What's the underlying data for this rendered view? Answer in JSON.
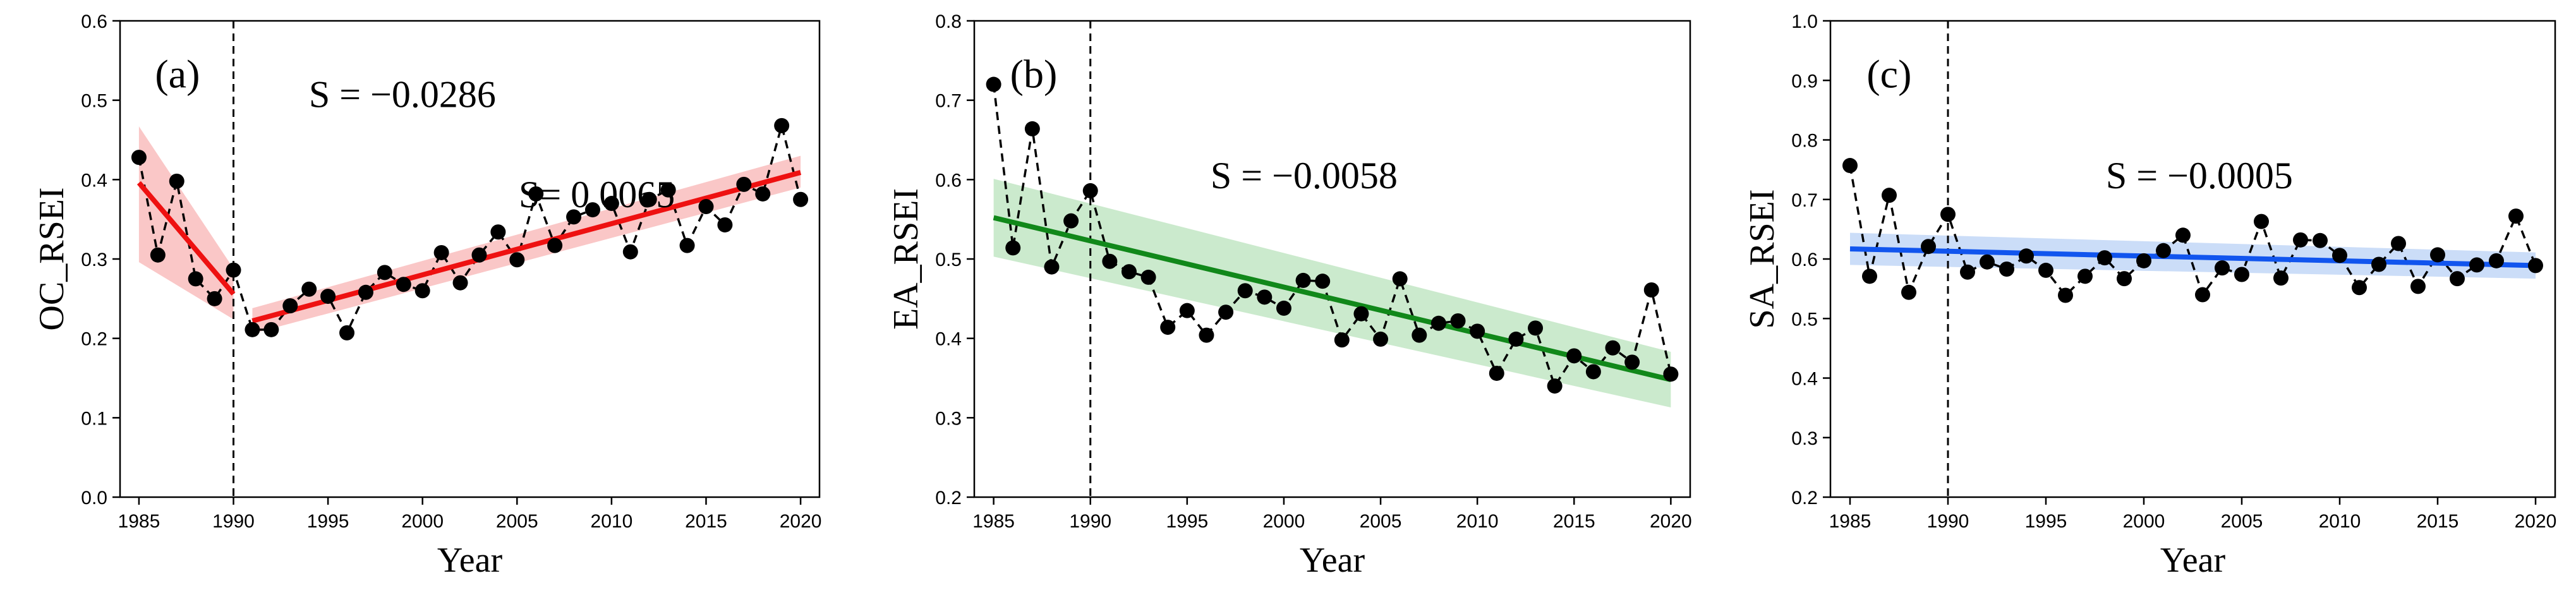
{
  "chart_data": [
    {
      "type": "line",
      "panel_label": "(a)",
      "xlabel": "Year",
      "ylabel": "OC_RSEI",
      "xlim": [
        1984,
        2021
      ],
      "ylim": [
        0.0,
        0.6
      ],
      "xticks": [
        1985,
        1990,
        1995,
        2000,
        2005,
        2010,
        2015,
        2020
      ],
      "yticks": [
        0.0,
        0.1,
        0.2,
        0.3,
        0.4,
        0.5,
        0.6
      ],
      "ytick_labels": [
        "0.0",
        "0.1",
        "0.2",
        "0.3",
        "0.4",
        "0.5",
        "0.6"
      ],
      "breakpoint_year": 1990,
      "series": [
        {
          "name": "RSEI",
          "x": [
            1985,
            1986,
            1987,
            1988,
            1989,
            1990,
            1991,
            1992,
            1993,
            1994,
            1995,
            1996,
            1997,
            1998,
            1999,
            2000,
            2001,
            2002,
            2003,
            2004,
            2005,
            2006,
            2007,
            2008,
            2009,
            2010,
            2011,
            2012,
            2013,
            2014,
            2015,
            2016,
            2017,
            2018,
            2019,
            2020
          ],
          "y": [
            0.428,
            0.305,
            0.398,
            0.275,
            0.25,
            0.286,
            0.211,
            0.211,
            0.241,
            0.262,
            0.253,
            0.207,
            0.258,
            0.283,
            0.268,
            0.26,
            0.308,
            0.27,
            0.305,
            0.334,
            0.299,
            0.382,
            0.317,
            0.353,
            0.362,
            0.37,
            0.309,
            0.375,
            0.387,
            0.317,
            0.366,
            0.343,
            0.394,
            0.382,
            0.468,
            0.375
          ]
        }
      ],
      "trends": [
        {
          "x": [
            1985,
            1990
          ],
          "y": [
            0.396,
            0.256
          ],
          "band": [
            [
              0.296,
              0.467
            ],
            [
              0.224,
              0.288
            ]
          ],
          "annotation": "S = −0.0286"
        },
        {
          "x": [
            1991,
            2020
          ],
          "y": [
            0.222,
            0.409
          ],
          "band": [
            [
              0.206,
              0.238
            ],
            [
              0.39,
              0.43
            ]
          ],
          "annotation": "S= 0.0065"
        }
      ],
      "colors": {
        "trend": "#ee1111",
        "band": "#f8b4b4"
      }
    },
    {
      "type": "line",
      "panel_label": "(b)",
      "xlabel": "Year",
      "ylabel": "EA_RSEI",
      "xlim": [
        1984,
        2021
      ],
      "ylim": [
        0.2,
        0.8
      ],
      "xticks": [
        1985,
        1990,
        1995,
        2000,
        2005,
        2010,
        2015,
        2020
      ],
      "yticks": [
        0.2,
        0.3,
        0.4,
        0.5,
        0.6,
        0.7,
        0.8
      ],
      "ytick_labels": [
        "0.2",
        "0.3",
        "0.4",
        "0.5",
        "0.6",
        "0.7",
        "0.8"
      ],
      "breakpoint_year": 1990,
      "series": [
        {
          "name": "RSEI",
          "x": [
            1985,
            1986,
            1987,
            1988,
            1989,
            1990,
            1991,
            1992,
            1993,
            1994,
            1995,
            1996,
            1997,
            1998,
            1999,
            2000,
            2001,
            2002,
            2003,
            2004,
            2005,
            2006,
            2007,
            2008,
            2009,
            2010,
            2011,
            2012,
            2013,
            2014,
            2015,
            2016,
            2017,
            2018,
            2019,
            2020
          ],
          "y": [
            0.72,
            0.514,
            0.664,
            0.49,
            0.548,
            0.586,
            0.497,
            0.484,
            0.477,
            0.414,
            0.435,
            0.404,
            0.433,
            0.46,
            0.452,
            0.438,
            0.473,
            0.472,
            0.398,
            0.431,
            0.399,
            0.475,
            0.404,
            0.419,
            0.422,
            0.409,
            0.356,
            0.399,
            0.413,
            0.34,
            0.378,
            0.358,
            0.388,
            0.37,
            0.461,
            0.355
          ]
        }
      ],
      "trends": [
        {
          "x": [
            1985,
            2020
          ],
          "y": [
            0.552,
            0.348
          ],
          "band": [
            [
              0.503,
              0.601
            ],
            [
              0.313,
              0.383
            ]
          ],
          "annotation": "S = −0.0058"
        }
      ],
      "colors": {
        "trend": "#11881a",
        "band": "#b9e3bc"
      }
    },
    {
      "type": "line",
      "panel_label": "(c)",
      "xlabel": "Year",
      "ylabel": "SA_RSEI",
      "xlim": [
        1984,
        2021
      ],
      "ylim": [
        0.2,
        1.0
      ],
      "xticks": [
        1985,
        1990,
        1995,
        2000,
        2005,
        2010,
        2015,
        2020
      ],
      "yticks": [
        0.2,
        0.3,
        0.4,
        0.5,
        0.6,
        0.7,
        0.8,
        0.9,
        1.0
      ],
      "ytick_labels": [
        "0.2",
        "0.3",
        "0.4",
        "0.5",
        "0.6",
        "0.7",
        "0.8",
        "0.9",
        "1.0"
      ],
      "breakpoint_year": 1990,
      "series": [
        {
          "name": "RSEI",
          "x": [
            1985,
            1986,
            1987,
            1988,
            1989,
            1990,
            1991,
            1992,
            1993,
            1994,
            1995,
            1996,
            1997,
            1998,
            1999,
            2000,
            2001,
            2002,
            2003,
            2004,
            2005,
            2006,
            2007,
            2008,
            2009,
            2010,
            2011,
            2012,
            2013,
            2014,
            2015,
            2016,
            2017,
            2018,
            2019,
            2020
          ],
          "y": [
            0.757,
            0.571,
            0.707,
            0.544,
            0.621,
            0.675,
            0.578,
            0.595,
            0.583,
            0.605,
            0.581,
            0.539,
            0.571,
            0.602,
            0.567,
            0.597,
            0.614,
            0.64,
            0.54,
            0.585,
            0.574,
            0.663,
            0.568,
            0.632,
            0.631,
            0.606,
            0.552,
            0.591,
            0.626,
            0.554,
            0.607,
            0.567,
            0.59,
            0.597,
            0.672,
            0.589
          ]
        }
      ],
      "trends": [
        {
          "x": [
            1985,
            2020
          ],
          "y": [
            0.617,
            0.589
          ],
          "band": [
            [
              0.59,
              0.644
            ],
            [
              0.567,
              0.611
            ]
          ],
          "annotation": "S = −0.0005"
        }
      ],
      "colors": {
        "trend": "#1155ee",
        "band": "#b9d2f6"
      }
    }
  ]
}
